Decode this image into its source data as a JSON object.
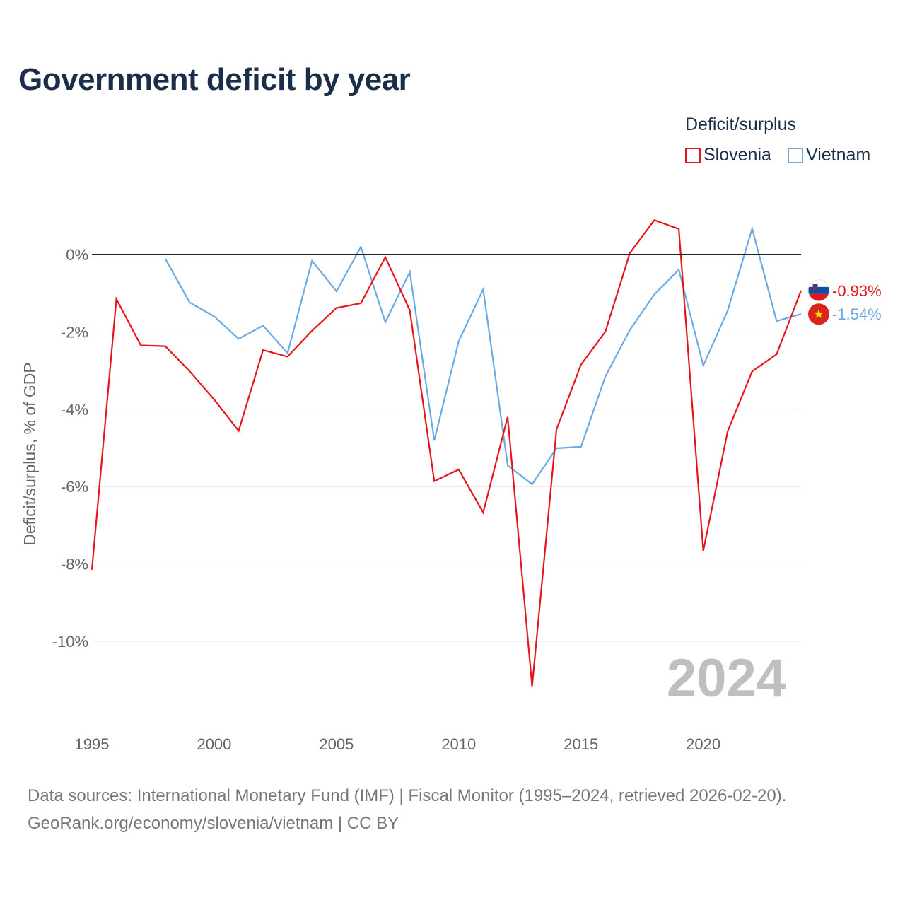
{
  "title": "Government deficit by year",
  "legend": {
    "title": "Deficit/surplus",
    "items": [
      {
        "label": "Slovenia",
        "color": "#e8141b"
      },
      {
        "label": "Vietnam",
        "color": "#6aaae4"
      }
    ]
  },
  "watermark_year": "2024",
  "source": {
    "line1": "Data sources: International Monetary Fund (IMF) | Fiscal Monitor (1995–2024, retrieved 2026-02-20).",
    "line2": "GeoRank.org/economy/slovenia/vietnam | CC BY"
  },
  "chart_data": {
    "type": "line",
    "title": "Government deficit by year",
    "xlabel": "",
    "ylabel": "Deficit/surplus, % of GDP",
    "xlim": [
      1995,
      2024
    ],
    "ylim": [
      -11.5,
      1.5
    ],
    "x_ticks": [
      1995,
      2000,
      2005,
      2010,
      2015,
      2020
    ],
    "y_ticks": [
      0,
      -2,
      -4,
      -6,
      -8,
      -10
    ],
    "y_tick_labels": [
      "0%",
      "-2%",
      "-4%",
      "-6%",
      "-8%",
      "-10%"
    ],
    "zero_line": true,
    "series": [
      {
        "name": "Slovenia",
        "color": "#e8141b",
        "end_label": "-0.93%",
        "points": [
          [
            1995,
            -8.15
          ],
          [
            1996,
            -1.15
          ],
          [
            1997,
            -2.35
          ],
          [
            1998,
            -2.37
          ],
          [
            1999,
            -3.02
          ],
          [
            2000,
            -3.75
          ],
          [
            2001,
            -4.56
          ],
          [
            2002,
            -2.47
          ],
          [
            2003,
            -2.64
          ],
          [
            2004,
            -1.97
          ],
          [
            2005,
            -1.38
          ],
          [
            2006,
            -1.26
          ],
          [
            2007,
            -0.07
          ],
          [
            2008,
            -1.44
          ],
          [
            2009,
            -5.86
          ],
          [
            2010,
            -5.56
          ],
          [
            2011,
            -6.67
          ],
          [
            2012,
            -4.2
          ],
          [
            2013,
            -11.16
          ],
          [
            2014,
            -4.52
          ],
          [
            2015,
            -2.85
          ],
          [
            2016,
            -1.99
          ],
          [
            2017,
            0.04
          ],
          [
            2018,
            0.89
          ],
          [
            2019,
            0.66
          ],
          [
            2020,
            -7.66
          ],
          [
            2021,
            -4.57
          ],
          [
            2022,
            -3.02
          ],
          [
            2023,
            -2.58
          ],
          [
            2024,
            -0.93
          ]
        ]
      },
      {
        "name": "Vietnam",
        "color": "#6aaae4",
        "end_label": "-1.54%",
        "points": [
          [
            1998,
            -0.11
          ],
          [
            1999,
            -1.24
          ],
          [
            2000,
            -1.6
          ],
          [
            2001,
            -2.18
          ],
          [
            2002,
            -1.84
          ],
          [
            2003,
            -2.55
          ],
          [
            2004,
            -0.16
          ],
          [
            2005,
            -0.95
          ],
          [
            2006,
            0.2
          ],
          [
            2007,
            -1.75
          ],
          [
            2008,
            -0.45
          ],
          [
            2009,
            -4.81
          ],
          [
            2010,
            -2.24
          ],
          [
            2011,
            -0.9
          ],
          [
            2012,
            -5.45
          ],
          [
            2013,
            -5.94
          ],
          [
            2014,
            -5.01
          ],
          [
            2015,
            -4.97
          ],
          [
            2016,
            -3.15
          ],
          [
            2017,
            -1.95
          ],
          [
            2018,
            -1.03
          ],
          [
            2019,
            -0.39
          ],
          [
            2020,
            -2.87
          ],
          [
            2021,
            -1.45
          ],
          [
            2022,
            0.67
          ],
          [
            2023,
            -1.72
          ],
          [
            2024,
            -1.54
          ]
        ]
      }
    ]
  }
}
